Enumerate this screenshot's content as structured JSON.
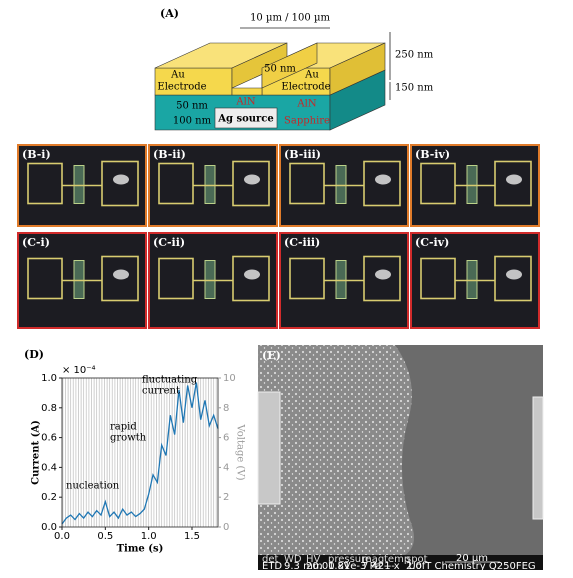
{
  "panel_a": {
    "label": "(A)",
    "gap_width": "10 µm / 100 µm",
    "electrode_height": "250 nm",
    "layer_height": "150 nm",
    "left_electrode": [
      "Au",
      "Electrode"
    ],
    "right_electrode": [
      "Au",
      "Electrode"
    ],
    "gap_thickness": "50 nm",
    "aln_left": "AlN",
    "aln_right": "AlN",
    "substrate": "Sapphire",
    "aln_thickness": "50 nm",
    "source_thickness": "100 nm",
    "source": "Ag source"
  },
  "panel_b": {
    "labels": [
      "(B-i)",
      "(B-ii)",
      "(B-iii)",
      "(B-iv)"
    ]
  },
  "panel_c": {
    "labels": [
      "(C-i)",
      "(C-ii)",
      "(C-iii)",
      "(C-iv)"
    ]
  },
  "chart_data": {
    "type": "line",
    "title": "(D)",
    "xlabel": "Time (s)",
    "ylabel": "Current (A)",
    "y2label": "Voltage (V)",
    "y_multiplier": "× 10⁻⁴",
    "annotations": [
      [
        "nucleation"
      ],
      [
        "rapid",
        "growth"
      ],
      [
        "fluctuating",
        "current"
      ]
    ],
    "x": [
      0,
      0.05,
      0.1,
      0.15,
      0.2,
      0.25,
      0.3,
      0.35,
      0.4,
      0.45,
      0.5,
      0.55,
      0.6,
      0.65,
      0.7,
      0.75,
      0.8,
      0.85,
      0.9,
      0.95,
      1.0,
      1.05,
      1.1,
      1.15,
      1.2,
      1.25,
      1.3,
      1.35,
      1.4,
      1.45,
      1.5,
      1.55,
      1.6,
      1.65,
      1.7,
      1.75,
      1.8
    ],
    "values": [
      0.02,
      0.06,
      0.08,
      0.05,
      0.09,
      0.06,
      0.1,
      0.07,
      0.11,
      0.08,
      0.17,
      0.07,
      0.1,
      0.06,
      0.12,
      0.08,
      0.1,
      0.07,
      0.09,
      0.12,
      0.22,
      0.35,
      0.3,
      0.55,
      0.48,
      0.75,
      0.62,
      0.92,
      0.7,
      0.95,
      0.8,
      0.97,
      0.72,
      0.85,
      0.68,
      0.75,
      0.66
    ],
    "color": "#1f77b4",
    "xlim": [
      0,
      1.8
    ],
    "xticks": [
      {
        "value": 0,
        "label": "0.0"
      },
      {
        "value": 0.5,
        "label": "0.5"
      },
      {
        "value": 1,
        "label": "1.0"
      },
      {
        "value": 1.5,
        "label": "1.5"
      }
    ],
    "ylim": [
      0,
      1
    ],
    "yticks": [
      {
        "value": 0,
        "label": "0.0"
      },
      {
        "value": 0.2,
        "label": "0.2"
      },
      {
        "value": 0.4,
        "label": "0.4"
      },
      {
        "value": 0.6,
        "label": "0.6"
      },
      {
        "value": 0.8,
        "label": "0.8"
      },
      {
        "value": 1,
        "label": "1.0"
      }
    ],
    "y2lim": [
      0,
      10
    ],
    "y2ticks": [
      0,
      2,
      4,
      6,
      8,
      10
    ]
  },
  "panel_e": {
    "label": "(E)",
    "info_bar": [
      [
        "det",
        "ETD"
      ],
      [
        "WD",
        "9.3 mm"
      ],
      [
        "HV",
        "20.00 kV"
      ],
      [
        "pressure",
        "1.81e-3 Pa"
      ],
      [
        "mag",
        "7 421 x"
      ],
      [
        "temp",
        "---"
      ],
      [
        "spot",
        "2.0"
      ]
    ],
    "scale": "20 µm",
    "institution": "UofT Chemistry Q250FEG"
  }
}
